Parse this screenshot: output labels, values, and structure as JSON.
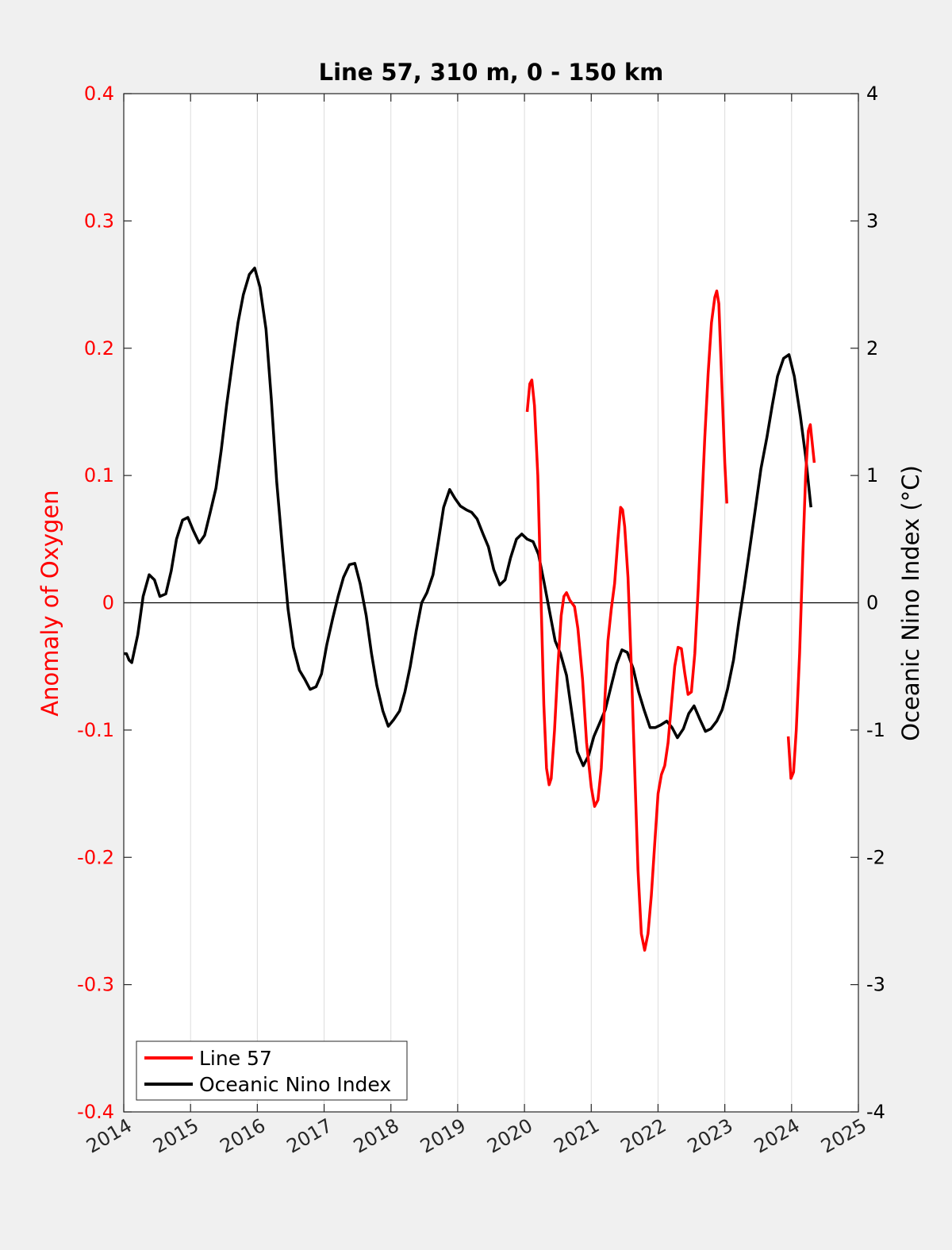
{
  "chart_data": {
    "type": "line",
    "title": "Line 57, 310 m, 0 - 150 km",
    "xlabel": "",
    "ylabel_left": "Anomaly of Oxygen",
    "ylabel_right": "Oceanic Nino Index (°C)",
    "xlim": [
      2014,
      2025
    ],
    "ylim_left": [
      -0.4,
      0.4
    ],
    "ylim_right": [
      -4,
      4
    ],
    "x_ticks": [
      "2014",
      "2015",
      "2016",
      "2017",
      "2018",
      "2019",
      "2020",
      "2021",
      "2022",
      "2023",
      "2024",
      "2025"
    ],
    "y_left_ticks": [
      "0.4",
      "0.3",
      "0.2",
      "0.1",
      "0",
      "-0.1",
      "-0.2",
      "-0.3",
      "-0.4"
    ],
    "y_right_ticks": [
      "4",
      "3",
      "2",
      "1",
      "0",
      "-1",
      "-2",
      "-3",
      "-4"
    ],
    "grid": "vertical",
    "zero_line": true,
    "legend_position": "bottom-left",
    "colors": {
      "line57": "#ff0000",
      "oni": "#000000",
      "left_axis": "#ff0000",
      "right_axis": "#000000"
    },
    "series": [
      {
        "name": "Line 57",
        "axis": "left",
        "segments": [
          [
            [
              2020.04,
              0.15
            ],
            [
              2020.08,
              0.172
            ],
            [
              2020.11,
              0.175
            ],
            [
              2020.15,
              0.155
            ],
            [
              2020.2,
              0.1
            ],
            [
              2020.25,
              0.0
            ],
            [
              2020.29,
              -0.08
            ],
            [
              2020.33,
              -0.13
            ],
            [
              2020.37,
              -0.143
            ],
            [
              2020.4,
              -0.138
            ],
            [
              2020.45,
              -0.1
            ],
            [
              2020.5,
              -0.05
            ],
            [
              2020.55,
              -0.01
            ],
            [
              2020.59,
              0.005
            ],
            [
              2020.63,
              0.008
            ],
            [
              2020.68,
              0.002
            ],
            [
              2020.75,
              -0.003
            ],
            [
              2020.8,
              -0.02
            ],
            [
              2020.87,
              -0.06
            ],
            [
              2020.93,
              -0.11
            ],
            [
              2021.0,
              -0.145
            ],
            [
              2021.05,
              -0.16
            ],
            [
              2021.1,
              -0.155
            ],
            [
              2021.15,
              -0.13
            ],
            [
              2021.2,
              -0.08
            ],
            [
              2021.25,
              -0.03
            ],
            [
              2021.3,
              -0.005
            ],
            [
              2021.35,
              0.015
            ],
            [
              2021.4,
              0.05
            ],
            [
              2021.44,
              0.075
            ],
            [
              2021.47,
              0.073
            ],
            [
              2021.5,
              0.06
            ],
            [
              2021.55,
              0.02
            ],
            [
              2021.6,
              -0.05
            ],
            [
              2021.65,
              -0.13
            ],
            [
              2021.7,
              -0.21
            ],
            [
              2021.75,
              -0.26
            ],
            [
              2021.8,
              -0.273
            ],
            [
              2021.85,
              -0.26
            ],
            [
              2021.9,
              -0.23
            ],
            [
              2021.95,
              -0.19
            ],
            [
              2022.0,
              -0.15
            ],
            [
              2022.05,
              -0.135
            ],
            [
              2022.1,
              -0.128
            ],
            [
              2022.15,
              -0.11
            ],
            [
              2022.2,
              -0.08
            ],
            [
              2022.25,
              -0.05
            ],
            [
              2022.3,
              -0.035
            ],
            [
              2022.35,
              -0.036
            ],
            [
              2022.4,
              -0.055
            ],
            [
              2022.45,
              -0.072
            ],
            [
              2022.5,
              -0.07
            ],
            [
              2022.55,
              -0.04
            ],
            [
              2022.6,
              0.01
            ],
            [
              2022.65,
              0.07
            ],
            [
              2022.7,
              0.13
            ],
            [
              2022.75,
              0.18
            ],
            [
              2022.8,
              0.22
            ],
            [
              2022.85,
              0.24
            ],
            [
              2022.88,
              0.245
            ],
            [
              2022.91,
              0.235
            ],
            [
              2022.95,
              0.18
            ],
            [
              2023.0,
              0.11
            ],
            [
              2023.03,
              0.078
            ]
          ],
          [
            [
              2023.95,
              -0.105
            ],
            [
              2023.99,
              -0.138
            ],
            [
              2024.03,
              -0.133
            ],
            [
              2024.07,
              -0.1
            ],
            [
              2024.12,
              -0.04
            ],
            [
              2024.17,
              0.04
            ],
            [
              2024.21,
              0.1
            ],
            [
              2024.25,
              0.135
            ],
            [
              2024.28,
              0.14
            ],
            [
              2024.31,
              0.125
            ],
            [
              2024.34,
              0.11
            ]
          ]
        ]
      },
      {
        "name": "Oceanic Nino Index",
        "axis": "right",
        "points": [
          [
            2014.0,
            -0.4
          ],
          [
            2014.04,
            -0.4
          ],
          [
            2014.08,
            -0.45
          ],
          [
            2014.12,
            -0.47
          ],
          [
            2014.21,
            -0.25
          ],
          [
            2014.29,
            0.05
          ],
          [
            2014.38,
            0.22
          ],
          [
            2014.46,
            0.18
          ],
          [
            2014.54,
            0.05
          ],
          [
            2014.63,
            0.07
          ],
          [
            2014.71,
            0.25
          ],
          [
            2014.79,
            0.5
          ],
          [
            2014.88,
            0.65
          ],
          [
            2014.96,
            0.67
          ],
          [
            2015.04,
            0.57
          ],
          [
            2015.13,
            0.47
          ],
          [
            2015.21,
            0.53
          ],
          [
            2015.29,
            0.7
          ],
          [
            2015.38,
            0.9
          ],
          [
            2015.46,
            1.2
          ],
          [
            2015.54,
            1.55
          ],
          [
            2015.63,
            1.9
          ],
          [
            2015.71,
            2.2
          ],
          [
            2015.79,
            2.42
          ],
          [
            2015.88,
            2.58
          ],
          [
            2015.96,
            2.63
          ],
          [
            2016.04,
            2.48
          ],
          [
            2016.13,
            2.15
          ],
          [
            2016.21,
            1.6
          ],
          [
            2016.29,
            0.95
          ],
          [
            2016.38,
            0.4
          ],
          [
            2016.46,
            -0.05
          ],
          [
            2016.54,
            -0.35
          ],
          [
            2016.63,
            -0.53
          ],
          [
            2016.71,
            -0.6
          ],
          [
            2016.79,
            -0.68
          ],
          [
            2016.88,
            -0.66
          ],
          [
            2016.96,
            -0.56
          ],
          [
            2017.04,
            -0.33
          ],
          [
            2017.13,
            -0.12
          ],
          [
            2017.21,
            0.05
          ],
          [
            2017.29,
            0.2
          ],
          [
            2017.38,
            0.3
          ],
          [
            2017.46,
            0.31
          ],
          [
            2017.54,
            0.15
          ],
          [
            2017.63,
            -0.1
          ],
          [
            2017.71,
            -0.4
          ],
          [
            2017.79,
            -0.65
          ],
          [
            2017.88,
            -0.85
          ],
          [
            2017.96,
            -0.97
          ],
          [
            2018.04,
            -0.92
          ],
          [
            2018.13,
            -0.85
          ],
          [
            2018.21,
            -0.7
          ],
          [
            2018.29,
            -0.5
          ],
          [
            2018.38,
            -0.22
          ],
          [
            2018.46,
            0.0
          ],
          [
            2018.54,
            0.08
          ],
          [
            2018.63,
            0.22
          ],
          [
            2018.71,
            0.48
          ],
          [
            2018.79,
            0.75
          ],
          [
            2018.88,
            0.89
          ],
          [
            2018.96,
            0.82
          ],
          [
            2019.04,
            0.76
          ],
          [
            2019.13,
            0.73
          ],
          [
            2019.21,
            0.71
          ],
          [
            2019.29,
            0.66
          ],
          [
            2019.38,
            0.54
          ],
          [
            2019.46,
            0.44
          ],
          [
            2019.54,
            0.26
          ],
          [
            2019.63,
            0.14
          ],
          [
            2019.71,
            0.18
          ],
          [
            2019.79,
            0.35
          ],
          [
            2019.88,
            0.5
          ],
          [
            2019.96,
            0.54
          ],
          [
            2020.04,
            0.5
          ],
          [
            2020.13,
            0.48
          ],
          [
            2020.21,
            0.38
          ],
          [
            2020.29,
            0.17
          ],
          [
            2020.38,
            -0.08
          ],
          [
            2020.46,
            -0.3
          ],
          [
            2020.54,
            -0.4
          ],
          [
            2020.63,
            -0.57
          ],
          [
            2020.71,
            -0.87
          ],
          [
            2020.79,
            -1.17
          ],
          [
            2020.88,
            -1.28
          ],
          [
            2020.96,
            -1.2
          ],
          [
            2021.04,
            -1.05
          ],
          [
            2021.13,
            -0.94
          ],
          [
            2021.21,
            -0.84
          ],
          [
            2021.29,
            -0.67
          ],
          [
            2021.38,
            -0.48
          ],
          [
            2021.46,
            -0.37
          ],
          [
            2021.54,
            -0.39
          ],
          [
            2021.63,
            -0.52
          ],
          [
            2021.71,
            -0.7
          ],
          [
            2021.79,
            -0.84
          ],
          [
            2021.88,
            -0.98
          ],
          [
            2021.96,
            -0.98
          ],
          [
            2022.04,
            -0.96
          ],
          [
            2022.13,
            -0.93
          ],
          [
            2022.21,
            -0.98
          ],
          [
            2022.29,
            -1.06
          ],
          [
            2022.38,
            -0.99
          ],
          [
            2022.46,
            -0.87
          ],
          [
            2022.54,
            -0.81
          ],
          [
            2022.63,
            -0.92
          ],
          [
            2022.71,
            -1.01
          ],
          [
            2022.79,
            -0.99
          ],
          [
            2022.88,
            -0.93
          ],
          [
            2022.96,
            -0.84
          ],
          [
            2023.04,
            -0.68
          ],
          [
            2023.13,
            -0.45
          ],
          [
            2023.21,
            -0.15
          ],
          [
            2023.29,
            0.12
          ],
          [
            2023.38,
            0.45
          ],
          [
            2023.46,
            0.75
          ],
          [
            2023.54,
            1.05
          ],
          [
            2023.63,
            1.3
          ],
          [
            2023.71,
            1.55
          ],
          [
            2023.79,
            1.78
          ],
          [
            2023.88,
            1.92
          ],
          [
            2023.96,
            1.95
          ],
          [
            2024.04,
            1.78
          ],
          [
            2024.13,
            1.47
          ],
          [
            2024.21,
            1.15
          ],
          [
            2024.29,
            0.75
          ]
        ]
      }
    ]
  }
}
